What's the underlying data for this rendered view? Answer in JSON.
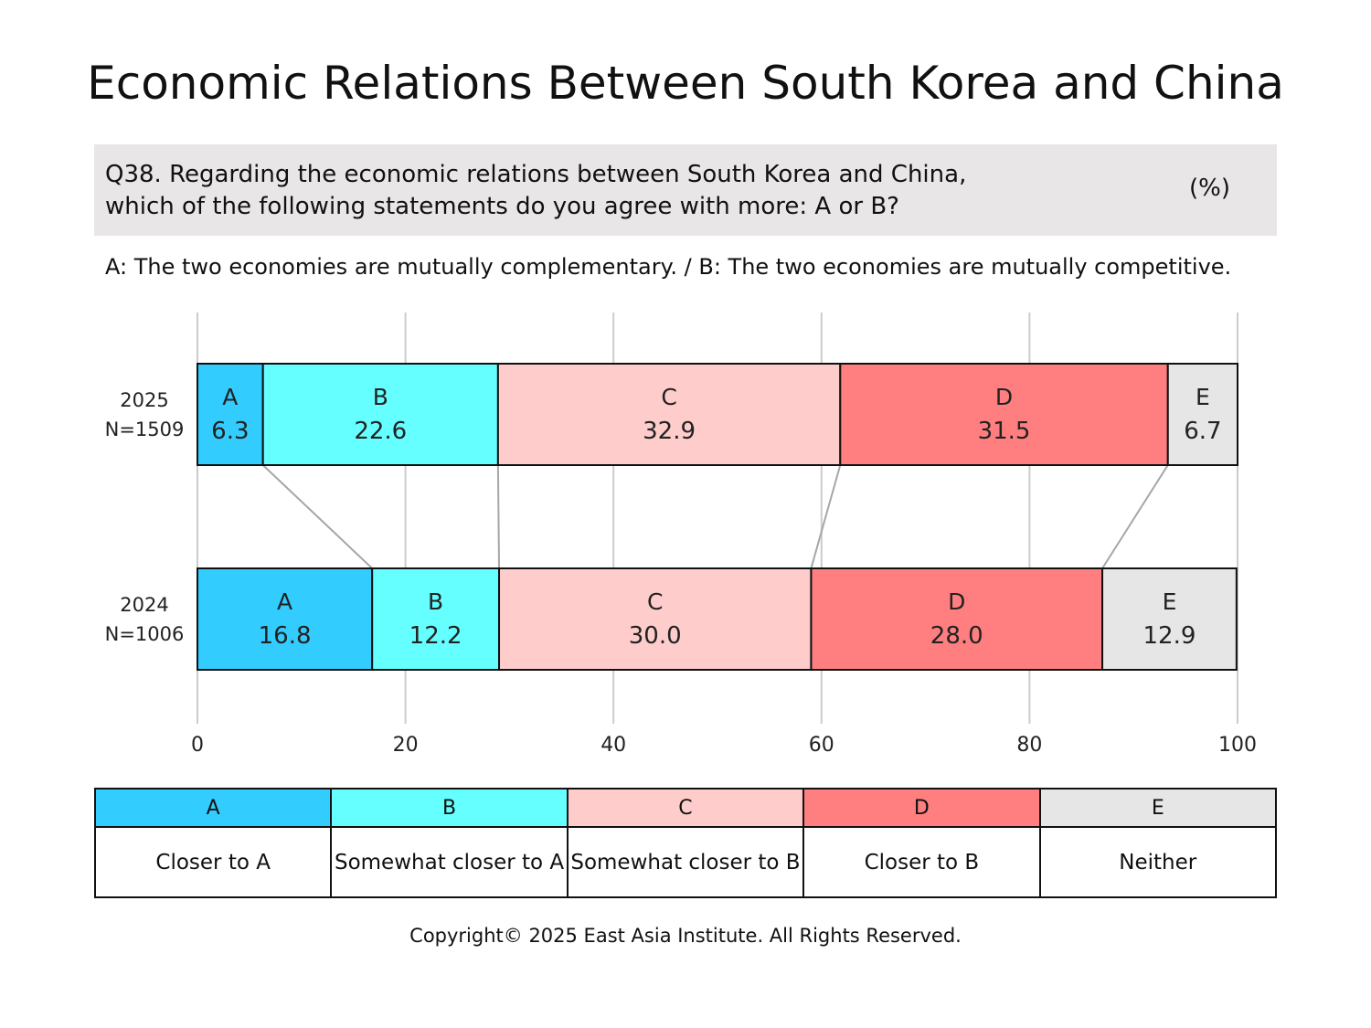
{
  "title": "Economic Relations Between South Korea and China",
  "question": {
    "line1": "Q38. Regarding the economic relations between South Korea and China,",
    "line2": "which of the following statements do you agree with more: A or B?",
    "unit": "(%)"
  },
  "statement": "A: The two economies are mutually complementary. / B: The two economies are mutually competitive.",
  "colors": {
    "A": "#33ccff",
    "B": "#66ffff",
    "C": "#ffcccc",
    "D": "#ff7f80",
    "E": "#e6e6e6"
  },
  "chart_data": {
    "type": "bar",
    "orientation": "horizontal",
    "stacked": true,
    "categories": [
      {
        "year": "2025",
        "n": "N=1509"
      },
      {
        "year": "2024",
        "n": "N=1006"
      }
    ],
    "series": [
      {
        "name": "A",
        "values": [
          6.3,
          16.8
        ],
        "labels": [
          "6.3",
          "16.8"
        ]
      },
      {
        "name": "B",
        "values": [
          22.6,
          12.2
        ],
        "labels": [
          "22.6",
          "12.2"
        ]
      },
      {
        "name": "C",
        "values": [
          32.9,
          30.0
        ],
        "labels": [
          "32.9",
          "30.0"
        ]
      },
      {
        "name": "D",
        "values": [
          31.5,
          28.0
        ],
        "labels": [
          "31.5",
          "28.0"
        ]
      },
      {
        "name": "E",
        "values": [
          6.7,
          12.9
        ],
        "labels": [
          "6.7",
          "12.9"
        ]
      }
    ],
    "xlim": [
      0,
      100
    ],
    "xticks": [
      "0",
      "20",
      "40",
      "60",
      "80",
      "100"
    ],
    "grid": true
  },
  "legend": [
    {
      "key": "A",
      "label": "Closer to A"
    },
    {
      "key": "B",
      "label": "Somewhat closer to A"
    },
    {
      "key": "C",
      "label": "Somewhat closer to B"
    },
    {
      "key": "D",
      "label": "Closer to B"
    },
    {
      "key": "E",
      "label": "Neither"
    }
  ],
  "copyright": "Copyright© 2025 East Asia Institute. All Rights Reserved."
}
